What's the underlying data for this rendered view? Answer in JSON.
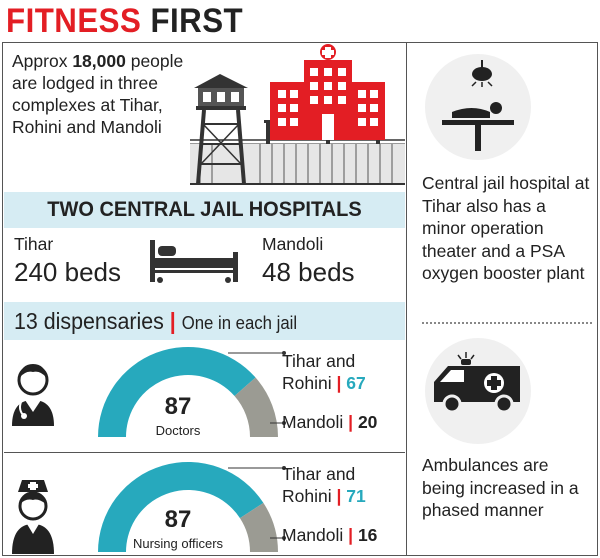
{
  "title": {
    "part1": "FITNESS",
    "part2": "FIRST"
  },
  "intro": {
    "prefix": "Approx ",
    "number": "18,000",
    "rest": "people are lodged in three complexes at Tihar, Rohini and Mandoli"
  },
  "hospitals_heading": "TWO CENTRAL JAIL HOSPITALS",
  "tihar": {
    "name": "Tihar",
    "beds": "240 beds"
  },
  "mandoli": {
    "name": "Mandoli",
    "beds": "48 beds"
  },
  "dispensaries": {
    "main": "13 dispensaries",
    "sep": "|",
    "detail": "One in each jail"
  },
  "doctors": {
    "total": "87",
    "label": "Doctors",
    "tihar_rohini_label_1": "Tihar and",
    "tihar_rohini_label_2": "Rohini",
    "tihar_rohini_value": "67",
    "mandoli_label": "Mandoli",
    "mandoli_value": "20",
    "share_tihar_rohini": 67,
    "share_mandoli": 20
  },
  "nurses": {
    "total": "87",
    "label": "Nursing officers",
    "tihar_rohini_label_1": "Tihar and",
    "tihar_rohini_label_2": "Rohini",
    "tihar_rohini_value": "71",
    "mandoli_label": "Mandoli",
    "mandoli_value": "16",
    "share_tihar_rohini": 71,
    "share_mandoli": 16
  },
  "sep_bar": "|",
  "right_text_1": "Central jail hospital at Tihar also has a minor operation theater and a PSA oxygen booster plant",
  "right_text_2": "Ambulances are being increased in a phased manner",
  "colors": {
    "red": "#e31e24",
    "teal": "#27a9bd",
    "gray": "#9b9b93",
    "band": "#d6ecf3",
    "dark": "#222222"
  },
  "icons": [
    "watchtower-icon",
    "hospital-building-icon",
    "barbed-fence-icon",
    "hospital-bed-icon",
    "doctor-icon",
    "nurse-icon",
    "operation-theater-icon",
    "ambulance-icon"
  ]
}
